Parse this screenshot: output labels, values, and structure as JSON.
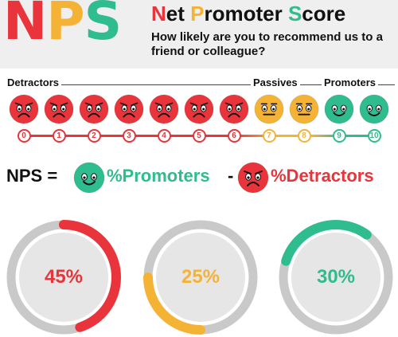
{
  "header": {
    "logo_letters": [
      {
        "text": "N",
        "color": "#e8343a"
      },
      {
        "text": "P",
        "color": "#f5b335"
      },
      {
        "text": "S",
        "color": "#2fbc8e"
      }
    ],
    "title_words": [
      {
        "initial": "N",
        "rest": "et ",
        "color": "#e8343a"
      },
      {
        "initial": "P",
        "rest": "romoter ",
        "color": "#f5b335"
      },
      {
        "initial": "S",
        "rest": "core",
        "color": "#2fbc8e"
      }
    ],
    "subtitle": "How likely are you to recommend us to a friend or colleague?"
  },
  "scale": {
    "categories": {
      "detractors": "Detractors",
      "passives": "Passives",
      "promoters": "Promoters"
    },
    "scores": [
      {
        "value": "0",
        "type": "detractor"
      },
      {
        "value": "1",
        "type": "detractor"
      },
      {
        "value": "2",
        "type": "detractor"
      },
      {
        "value": "3",
        "type": "detractor"
      },
      {
        "value": "4",
        "type": "detractor"
      },
      {
        "value": "5",
        "type": "detractor"
      },
      {
        "value": "6",
        "type": "detractor"
      },
      {
        "value": "7",
        "type": "passive"
      },
      {
        "value": "8",
        "type": "passive"
      },
      {
        "value": "9",
        "type": "promoter"
      },
      {
        "value": "10",
        "type": "promoter"
      }
    ]
  },
  "formula": {
    "lhs": "NPS =",
    "promoters": "%Promoters",
    "minus": "-",
    "detractors": "%Detractors"
  },
  "colors": {
    "detractor": "#e8343a",
    "passive": "#f5b335",
    "promoter": "#2fbc8e",
    "ring": "#c9c9c9",
    "inner": "#e6e6e6"
  },
  "donuts": [
    {
      "label": "45%",
      "fraction": 0.45,
      "start_deg": 0,
      "color": "#e8343a"
    },
    {
      "label": "25%",
      "fraction": 0.25,
      "start_deg": 180,
      "color": "#f5b335"
    },
    {
      "label": "30%",
      "fraction": 0.3,
      "start_deg": 288,
      "color": "#2fbc8e"
    }
  ]
}
